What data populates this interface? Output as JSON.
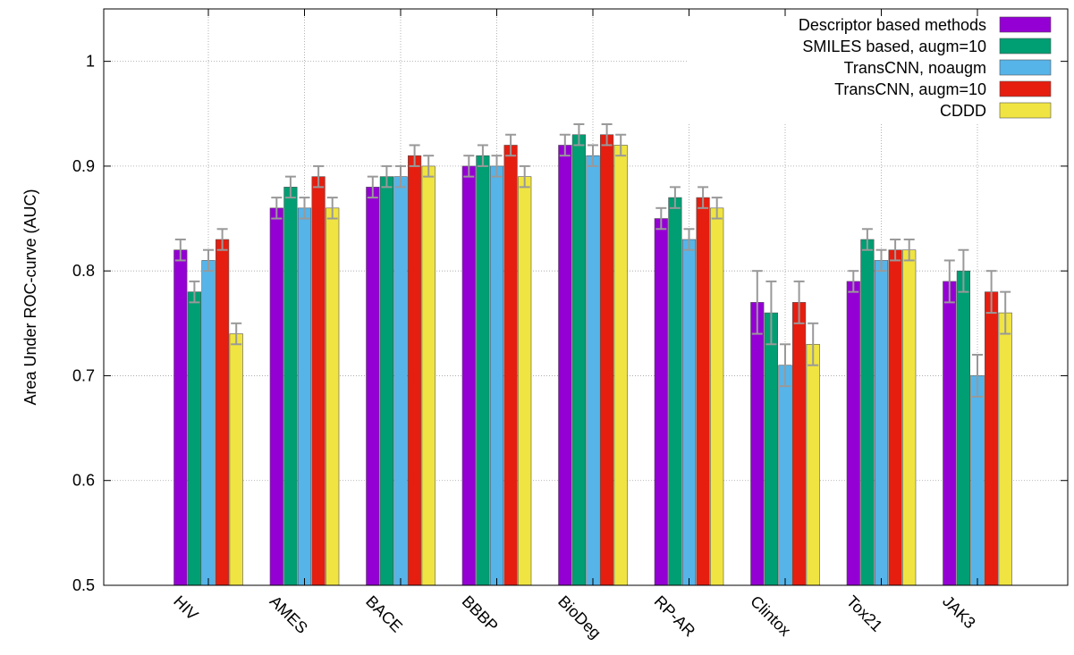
{
  "chart_data": {
    "type": "bar",
    "title": "",
    "xlabel": "",
    "ylabel": "Area Under ROC-curve (AUC)",
    "ylim": [
      0.5,
      1.05
    ],
    "yticks": [
      "0.5",
      "0.6",
      "0.7",
      "0.8",
      "0.9",
      "1"
    ],
    "grid": true,
    "legend_position": "top-right",
    "error_bars": true,
    "categories": [
      "HIV",
      "AMES",
      "BACE",
      "BBBP",
      "BioDeg",
      "RP-AR",
      "Clintox",
      "Tox21",
      "JAK3"
    ],
    "series": [
      {
        "name": "Descriptor based methods",
        "color": "#9400d3",
        "values": [
          0.82,
          0.86,
          0.88,
          0.9,
          0.92,
          0.85,
          0.77,
          0.79,
          0.79
        ],
        "errors": [
          0.01,
          0.01,
          0.01,
          0.01,
          0.01,
          0.01,
          0.03,
          0.01,
          0.02
        ]
      },
      {
        "name": "SMILES based, augm=10",
        "color": "#009e73",
        "values": [
          0.78,
          0.88,
          0.89,
          0.91,
          0.93,
          0.87,
          0.76,
          0.83,
          0.8
        ],
        "errors": [
          0.01,
          0.01,
          0.01,
          0.01,
          0.01,
          0.01,
          0.03,
          0.01,
          0.02
        ]
      },
      {
        "name": "TransCNN, noaugm",
        "color": "#56b4e9",
        "values": [
          0.81,
          0.86,
          0.89,
          0.9,
          0.91,
          0.83,
          0.71,
          0.81,
          0.7
        ],
        "errors": [
          0.01,
          0.01,
          0.01,
          0.01,
          0.01,
          0.01,
          0.02,
          0.01,
          0.02
        ]
      },
      {
        "name": "TransCNN, augm=10",
        "color": "#e51e10",
        "values": [
          0.83,
          0.89,
          0.91,
          0.92,
          0.93,
          0.87,
          0.77,
          0.82,
          0.78
        ],
        "errors": [
          0.01,
          0.01,
          0.01,
          0.01,
          0.01,
          0.01,
          0.02,
          0.01,
          0.02
        ]
      },
      {
        "name": "CDDD",
        "color": "#f0e442",
        "values": [
          0.74,
          0.86,
          0.9,
          0.89,
          0.92,
          0.86,
          0.73,
          0.82,
          0.76
        ],
        "errors": [
          0.01,
          0.01,
          0.01,
          0.01,
          0.01,
          0.01,
          0.02,
          0.01,
          0.02
        ]
      }
    ]
  }
}
